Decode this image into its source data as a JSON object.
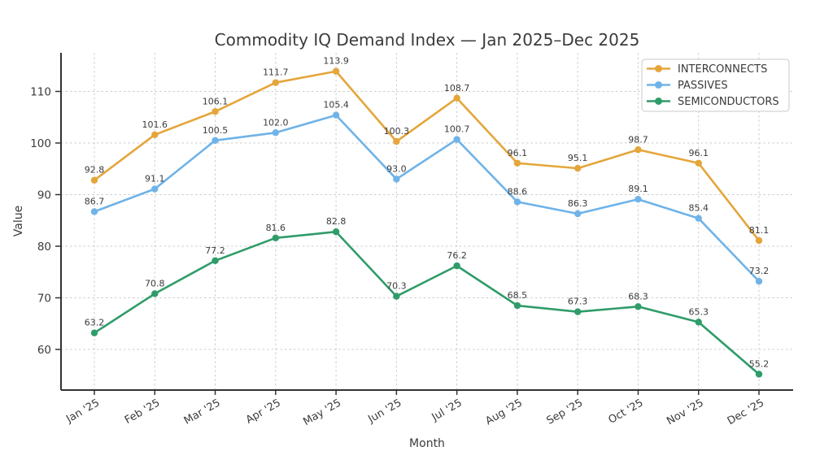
{
  "figure": {
    "title": "Commodity IQ Demand Index — Jan 2025–Dec 2025",
    "xlabel": "Month",
    "ylabel": "Value"
  },
  "chart_data": {
    "type": "line",
    "title": "Commodity IQ Demand Index — Jan 2025–Dec 2025",
    "xlabel": "Month",
    "ylabel": "Value",
    "categories": [
      "Jan '25",
      "Feb '25",
      "Mar '25",
      "Apr '25",
      "May '25",
      "Jun '25",
      "Jul '25",
      "Aug '25",
      "Sep '25",
      "Oct '25",
      "Nov '25",
      "Dec '25"
    ],
    "series": [
      {
        "name": "INTERCONNECTS",
        "color": "#E4A63B",
        "values": [
          92.8,
          101.6,
          106.1,
          111.7,
          113.9,
          100.3,
          108.7,
          96.1,
          95.1,
          98.7,
          96.1,
          81.1
        ]
      },
      {
        "name": "PASSIVES",
        "color": "#6FB3E8",
        "values": [
          86.7,
          91.1,
          100.5,
          102.0,
          105.4,
          93.0,
          100.7,
          88.6,
          86.3,
          89.1,
          85.4,
          73.2
        ]
      },
      {
        "name": "SEMICONDUCTORS",
        "color": "#2F9C69",
        "values": [
          63.2,
          70.8,
          77.2,
          81.6,
          82.8,
          70.3,
          76.2,
          68.5,
          67.3,
          68.3,
          65.3,
          55.2
        ]
      }
    ],
    "yticks": [
      60,
      70,
      80,
      90,
      100,
      110
    ],
    "ylim": [
      51.5,
      117.5
    ],
    "grid": true,
    "grid_style": "dashed",
    "point_labels": true,
    "legend_position": "top-right",
    "colors": {
      "text": "#3b3b3b",
      "grid": "#cccccc",
      "axis": "#333333",
      "background": "#ffffff",
      "legend_border": "#c8c8c8"
    }
  }
}
